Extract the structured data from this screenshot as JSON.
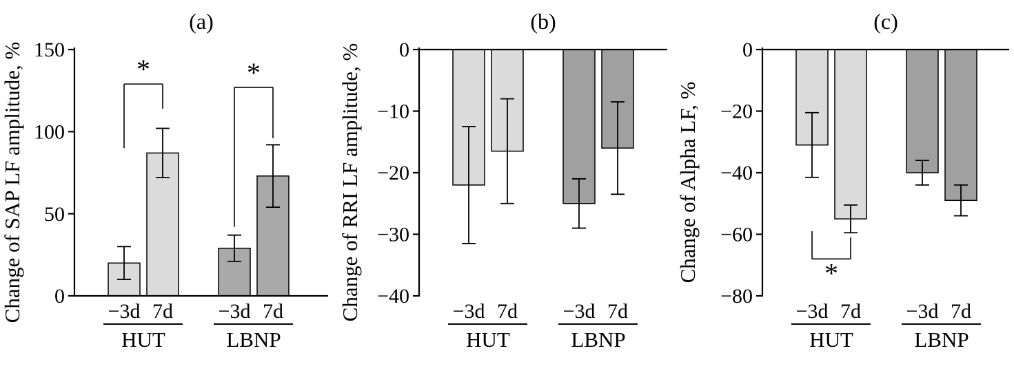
{
  "figure": {
    "background_color": "#ffffff",
    "description": "Three-panel grouped bar chart figure with error bars and significance asterisks"
  },
  "chart_data": [
    {
      "type": "bar",
      "panel_label": "(a)",
      "ylabel": "Change of SAP LF amplitude, %",
      "ylim": [
        0,
        150
      ],
      "yticks": [
        150,
        100,
        50,
        0
      ],
      "ytick_labels": [
        "150",
        "100",
        "50",
        "0"
      ],
      "categories": [
        "−3d",
        "7d"
      ],
      "grid": false,
      "legend": "none",
      "groups": [
        {
          "label": "HUT",
          "bar_color": "#dbdbdb",
          "values": [
            20,
            87
          ],
          "err": [
            10,
            15
          ]
        },
        {
          "label": "LBNP",
          "bar_color": "#a9a9a9",
          "values": [
            29,
            73
          ],
          "err": [
            8,
            19
          ]
        }
      ],
      "significance": [
        {
          "group": 0,
          "bars": [
            0,
            1
          ],
          "label": "*",
          "y": 129,
          "left_end": 90,
          "right_end": 114,
          "star": "above"
        },
        {
          "group": 1,
          "bars": [
            0,
            1
          ],
          "label": "*",
          "y": 127,
          "left_end": 42,
          "right_end": 96,
          "star": "above"
        }
      ]
    },
    {
      "type": "bar",
      "panel_label": "(b)",
      "ylabel": "Change of RRI LF amplitude, %",
      "ylim": [
        -40,
        0
      ],
      "yticks": [
        0,
        -10,
        -20,
        -30,
        -40
      ],
      "ytick_labels": [
        "0",
        "−10",
        "−20",
        "−30",
        "−40"
      ],
      "categories": [
        "−3d",
        "7d"
      ],
      "grid": false,
      "legend": "none",
      "groups": [
        {
          "label": "HUT",
          "bar_color": "#dbdbdb",
          "values": [
            -22,
            -16.5
          ],
          "err": [
            9.5,
            8.5
          ]
        },
        {
          "label": "LBNP",
          "bar_color": "#a0a0a0",
          "values": [
            -25,
            -16
          ],
          "err": [
            4,
            7.5
          ]
        }
      ],
      "significance": []
    },
    {
      "type": "bar",
      "panel_label": "(c)",
      "ylabel": "Change of Alpha LF, %",
      "ylim": [
        -80,
        0
      ],
      "yticks": [
        0,
        -20,
        -40,
        -60,
        -80
      ],
      "ytick_labels": [
        "0",
        "−20",
        "−40",
        "−60",
        "−80"
      ],
      "categories": [
        "−3d",
        "7d"
      ],
      "grid": false,
      "legend": "none",
      "groups": [
        {
          "label": "HUT",
          "bar_color": "#dbdbdb",
          "values": [
            -31,
            -55
          ],
          "err": [
            10.5,
            4.5
          ]
        },
        {
          "label": "LBNP",
          "bar_color": "#a0a0a0",
          "values": [
            -40,
            -49
          ],
          "err": [
            4,
            5
          ]
        }
      ],
      "significance": [
        {
          "group": 0,
          "bars": [
            0,
            1
          ],
          "label": "*",
          "y": -68,
          "left_end": -59,
          "right_end": -61,
          "star": "below"
        }
      ]
    }
  ]
}
